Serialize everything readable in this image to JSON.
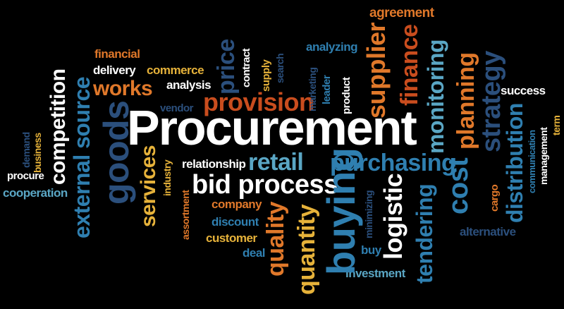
{
  "colors": {
    "white": "#ffffff",
    "orange": "#e0782a",
    "brick": "#c94d1e",
    "gold": "#e6b23a",
    "teal": "#5aa6c4",
    "blue": "#2f7fb0",
    "navy": "#2b4f7c",
    "gray": "#c9c9c9"
  },
  "words": {
    "procurement": "Procurement",
    "bid_process": "bid process",
    "provision": "provision",
    "purchasing": "purchasing",
    "buying": "buying",
    "retail": "retail",
    "goods": "goods",
    "competition": "competition",
    "external_source": "external source",
    "works": "works",
    "services": "services",
    "supplier": "supplier",
    "finance": "finance",
    "monitoring": "monitoring",
    "planning": "planning",
    "strategy": "strategy",
    "distribution": "distribution",
    "cost": "cost",
    "logistic": "logistic",
    "tendering": "tendering",
    "quality": "quality",
    "quantity": "quantity",
    "price": "price",
    "agreement": "agreement",
    "financial": "financial",
    "delivery": "delivery",
    "commerce": "commerce",
    "analysis": "analysis",
    "contract": "contract",
    "supply": "supply",
    "search": "search",
    "analyzing": "analyzing",
    "marketing": "marketing",
    "leader": "leader",
    "product": "product",
    "vendor": "vendor",
    "success": "success",
    "communication": "communication",
    "management": "management",
    "term": "term",
    "procure": "procure",
    "demand": "demand",
    "business": "business",
    "cooperation": "cooperation",
    "relationship": "relationship",
    "industry": "industry",
    "assortment": "assortment",
    "company": "company",
    "discount": "discount",
    "customer": "customer",
    "deal": "deal",
    "minimizing": "minimizing",
    "buy": "buy",
    "investment": "investment",
    "cargo": "cargo",
    "alternative": "alternative"
  }
}
